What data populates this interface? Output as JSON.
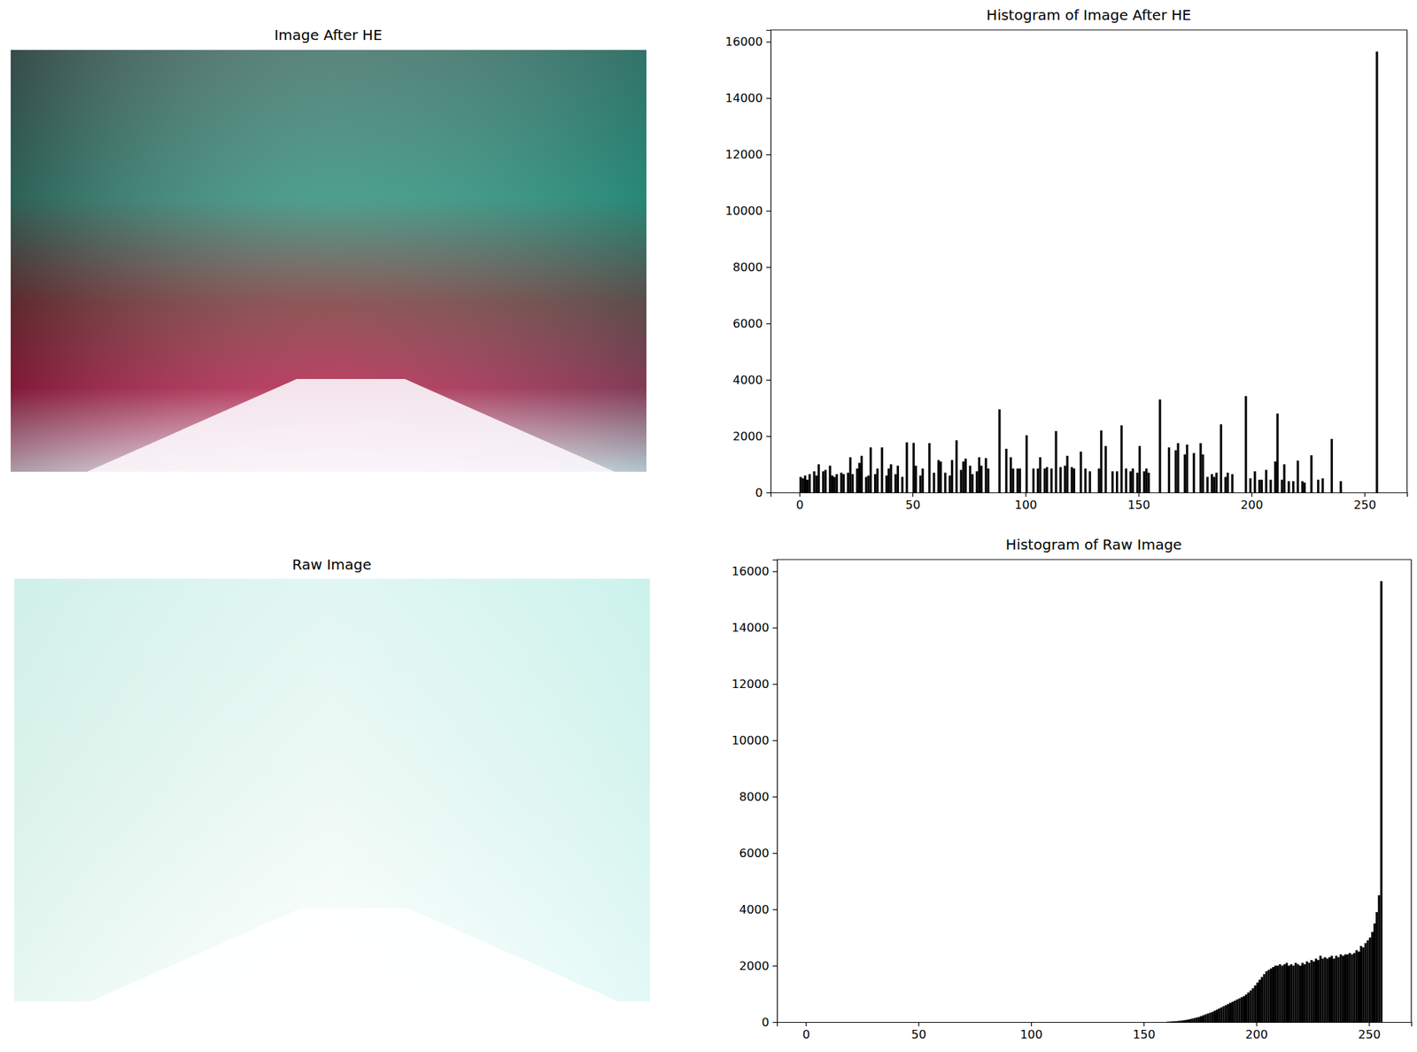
{
  "chart_data": [
    {
      "type": "image",
      "title": "Image After HE"
    },
    {
      "type": "histogram",
      "title": "Histogram of Image After HE",
      "color": "#000000",
      "xlim": [
        -12.8,
        268.8
      ],
      "ylim": [
        0,
        16417
      ],
      "xticks": [
        0,
        50,
        100,
        150,
        200,
        250
      ],
      "yticks": [
        0,
        2000,
        4000,
        6000,
        8000,
        10000,
        12000,
        14000,
        16000
      ],
      "bins": [
        0,
        1,
        2,
        3,
        4,
        5,
        6,
        7,
        8,
        9,
        10,
        11,
        12,
        13,
        14,
        15,
        16,
        17,
        18,
        19,
        20,
        21,
        22,
        23,
        24,
        25,
        26,
        27,
        28,
        29,
        30,
        31,
        32,
        33,
        34,
        35,
        36,
        37,
        38,
        39,
        40,
        41,
        42,
        43,
        44,
        45,
        46,
        47,
        48,
        49,
        50,
        51,
        52,
        53,
        54,
        55,
        56,
        57,
        58,
        59,
        60,
        61,
        62,
        63,
        64,
        65,
        66,
        67,
        68,
        69,
        70,
        71,
        72,
        73,
        74,
        75,
        76,
        77,
        78,
        79,
        80,
        81,
        82,
        83,
        84,
        85,
        86,
        87,
        88,
        89,
        90,
        91,
        92,
        93,
        94,
        95,
        96,
        97,
        98,
        99,
        100,
        101,
        102,
        103,
        104,
        105,
        106,
        107,
        108,
        109,
        110,
        111,
        112,
        113,
        114,
        115,
        116,
        117,
        118,
        119,
        120,
        121,
        122,
        123,
        124,
        125,
        126,
        127,
        128,
        129,
        130,
        131,
        132,
        133,
        134,
        135,
        136,
        137,
        138,
        139,
        140,
        141,
        142,
        143,
        144,
        145,
        146,
        147,
        148,
        149,
        150,
        151,
        152,
        153,
        154,
        155,
        156,
        157,
        158,
        159,
        160,
        161,
        162,
        163,
        164,
        165,
        166,
        167,
        168,
        169,
        170,
        171,
        172,
        173,
        174,
        175,
        176,
        177,
        178,
        179,
        180,
        181,
        182,
        183,
        184,
        185,
        186,
        187,
        188,
        189,
        190,
        191,
        192,
        193,
        194,
        195,
        196,
        197,
        198,
        199,
        200,
        201,
        202,
        203,
        204,
        205,
        206,
        207,
        208,
        209,
        210,
        211,
        212,
        213,
        214,
        215,
        216,
        217,
        218,
        219,
        220,
        221,
        222,
        223,
        224,
        225,
        226,
        227,
        228,
        229,
        230,
        231,
        232,
        233,
        234,
        235,
        236,
        237,
        238,
        239,
        240,
        241,
        242,
        243,
        244,
        245,
        246,
        247,
        248,
        249,
        250,
        251,
        252,
        253,
        254,
        255,
        256
      ],
      "values": [
        550,
        500,
        600,
        450,
        650,
        0,
        750,
        600,
        1000,
        0,
        750,
        800,
        0,
        950,
        600,
        550,
        650,
        0,
        700,
        650,
        0,
        700,
        1250,
        650,
        0,
        850,
        1050,
        1300,
        0,
        550,
        600,
        1600,
        0,
        650,
        850,
        0,
        1600,
        0,
        600,
        850,
        1000,
        0,
        650,
        950,
        0,
        550,
        0,
        1780,
        0,
        0,
        1760,
        950,
        0,
        600,
        850,
        0,
        0,
        1750,
        0,
        700,
        0,
        1150,
        1100,
        0,
        700,
        0,
        600,
        1150,
        0,
        1850,
        0,
        800,
        1100,
        1200,
        0,
        950,
        650,
        0,
        750,
        1250,
        950,
        0,
        1220,
        850,
        0,
        0,
        0,
        0,
        2950,
        0,
        0,
        1550,
        0,
        1250,
        850,
        0,
        850,
        850,
        0,
        0,
        2030,
        0,
        0,
        850,
        0,
        850,
        1250,
        0,
        850,
        900,
        0,
        850,
        0,
        2180,
        0,
        900,
        0,
        950,
        1300,
        0,
        900,
        850,
        0,
        0,
        1450,
        0,
        850,
        0,
        750,
        0,
        0,
        0,
        850,
        2200,
        0,
        1650,
        0,
        0,
        750,
        0,
        750,
        0,
        2380,
        0,
        850,
        0,
        750,
        850,
        0,
        700,
        1650,
        0,
        750,
        850,
        700,
        0,
        0,
        0,
        0,
        3300,
        0,
        0,
        0,
        1600,
        0,
        0,
        1500,
        1750,
        0,
        0,
        1350,
        1700,
        0,
        0,
        1400,
        0,
        0,
        1750,
        1350,
        0,
        550,
        0,
        650,
        550,
        700,
        0,
        2420,
        0,
        550,
        700,
        0,
        650,
        0,
        0,
        0,
        0,
        0,
        3420,
        0,
        500,
        0,
        750,
        0,
        450,
        450,
        0,
        800,
        0,
        450,
        0,
        1100,
        2800,
        0,
        450,
        1000,
        0,
        400,
        0,
        400,
        0,
        1130,
        0,
        400,
        350,
        0,
        0,
        1320,
        0,
        0,
        450,
        0,
        500,
        0,
        0,
        0,
        1900,
        0,
        0,
        0,
        400,
        0,
        0,
        0,
        0,
        0,
        0,
        0,
        0,
        0,
        0,
        0,
        0,
        0,
        0,
        0,
        15650
      ]
    },
    {
      "type": "image",
      "title": "Raw Image"
    },
    {
      "type": "histogram",
      "title": "Histogram of Raw Image",
      "color": "#000000",
      "xlim": [
        -12.8,
        268.8
      ],
      "ylim": [
        0,
        16417
      ],
      "xticks": [
        0,
        50,
        100,
        150,
        200,
        250
      ],
      "yticks": [
        0,
        2000,
        4000,
        6000,
        8000,
        10000,
        12000,
        14000,
        16000
      ],
      "bins": [
        0,
        1,
        2,
        3,
        4,
        5,
        6,
        7,
        8,
        9,
        10,
        11,
        12,
        13,
        14,
        15,
        16,
        17,
        18,
        19,
        20,
        21,
        22,
        23,
        24,
        25,
        26,
        27,
        28,
        29,
        30,
        31,
        32,
        33,
        34,
        35,
        36,
        37,
        38,
        39,
        40,
        41,
        42,
        43,
        44,
        45,
        46,
        47,
        48,
        49,
        50,
        51,
        52,
        53,
        54,
        55,
        56,
        57,
        58,
        59,
        60,
        61,
        62,
        63,
        64,
        65,
        66,
        67,
        68,
        69,
        70,
        71,
        72,
        73,
        74,
        75,
        76,
        77,
        78,
        79,
        80,
        81,
        82,
        83,
        84,
        85,
        86,
        87,
        88,
        89,
        90,
        91,
        92,
        93,
        94,
        95,
        96,
        97,
        98,
        99,
        100,
        101,
        102,
        103,
        104,
        105,
        106,
        107,
        108,
        109,
        110,
        111,
        112,
        113,
        114,
        115,
        116,
        117,
        118,
        119,
        120,
        121,
        122,
        123,
        124,
        125,
        126,
        127,
        128,
        129,
        130,
        131,
        132,
        133,
        134,
        135,
        136,
        137,
        138,
        139,
        140,
        141,
        142,
        143,
        144,
        145,
        146,
        147,
        148,
        149,
        150,
        151,
        152,
        153,
        154,
        155,
        156,
        157,
        158,
        159,
        160,
        161,
        162,
        163,
        164,
        165,
        166,
        167,
        168,
        169,
        170,
        171,
        172,
        173,
        174,
        175,
        176,
        177,
        178,
        179,
        180,
        181,
        182,
        183,
        184,
        185,
        186,
        187,
        188,
        189,
        190,
        191,
        192,
        193,
        194,
        195,
        196,
        197,
        198,
        199,
        200,
        201,
        202,
        203,
        204,
        205,
        206,
        207,
        208,
        209,
        210,
        211,
        212,
        213,
        214,
        215,
        216,
        217,
        218,
        219,
        220,
        221,
        222,
        223,
        224,
        225,
        226,
        227,
        228,
        229,
        230,
        231,
        232,
        233,
        234,
        235,
        236,
        237,
        238,
        239,
        240,
        241,
        242,
        243,
        244,
        245,
        246,
        247,
        248,
        249,
        250,
        251,
        252,
        253,
        254,
        255,
        256
      ],
      "values": [
        0,
        0,
        0,
        0,
        0,
        0,
        0,
        0,
        0,
        0,
        0,
        0,
        0,
        0,
        0,
        0,
        0,
        0,
        0,
        0,
        0,
        0,
        0,
        0,
        0,
        0,
        0,
        0,
        0,
        0,
        0,
        0,
        0,
        0,
        0,
        0,
        0,
        0,
        0,
        0,
        0,
        0,
        0,
        0,
        0,
        0,
        0,
        0,
        0,
        0,
        0,
        0,
        0,
        0,
        0,
        0,
        0,
        0,
        0,
        0,
        0,
        0,
        0,
        0,
        0,
        0,
        0,
        0,
        0,
        0,
        0,
        0,
        0,
        0,
        0,
        0,
        0,
        0,
        0,
        0,
        0,
        0,
        0,
        0,
        0,
        0,
        0,
        0,
        0,
        0,
        0,
        0,
        0,
        0,
        0,
        0,
        0,
        0,
        0,
        0,
        0,
        0,
        0,
        0,
        0,
        0,
        0,
        0,
        0,
        0,
        0,
        0,
        0,
        0,
        0,
        0,
        0,
        0,
        0,
        0,
        0,
        0,
        0,
        0,
        0,
        0,
        0,
        0,
        0,
        0,
        0,
        0,
        0,
        0,
        0,
        0,
        0,
        0,
        0,
        0,
        0,
        0,
        0,
        0,
        0,
        0,
        0,
        0,
        0,
        0,
        0,
        0,
        0,
        0,
        0,
        0,
        0,
        0,
        0,
        0,
        10,
        15,
        20,
        25,
        30,
        40,
        50,
        60,
        70,
        85,
        100,
        120,
        140,
        160,
        180,
        210,
        240,
        270,
        300,
        330,
        360,
        400,
        440,
        480,
        520,
        560,
        600,
        640,
        680,
        720,
        760,
        800,
        840,
        880,
        920,
        980,
        1050,
        1120,
        1200,
        1300,
        1400,
        1500,
        1600,
        1700,
        1800,
        1850,
        1900,
        1950,
        2000,
        2000,
        2050,
        2000,
        2050,
        2100,
        2000,
        2050,
        2000,
        2100,
        2050,
        2000,
        2100,
        2050,
        2150,
        2100,
        2200,
        2150,
        2250,
        2200,
        2350,
        2250,
        2300,
        2250,
        2300,
        2350,
        2250,
        2350,
        2300,
        2400,
        2350,
        2400,
        2400,
        2450,
        2400,
        2450,
        2550,
        2500,
        2700,
        2650,
        2800,
        2900,
        3000,
        3200,
        3500,
        3900,
        4500,
        15650
      ]
    }
  ]
}
